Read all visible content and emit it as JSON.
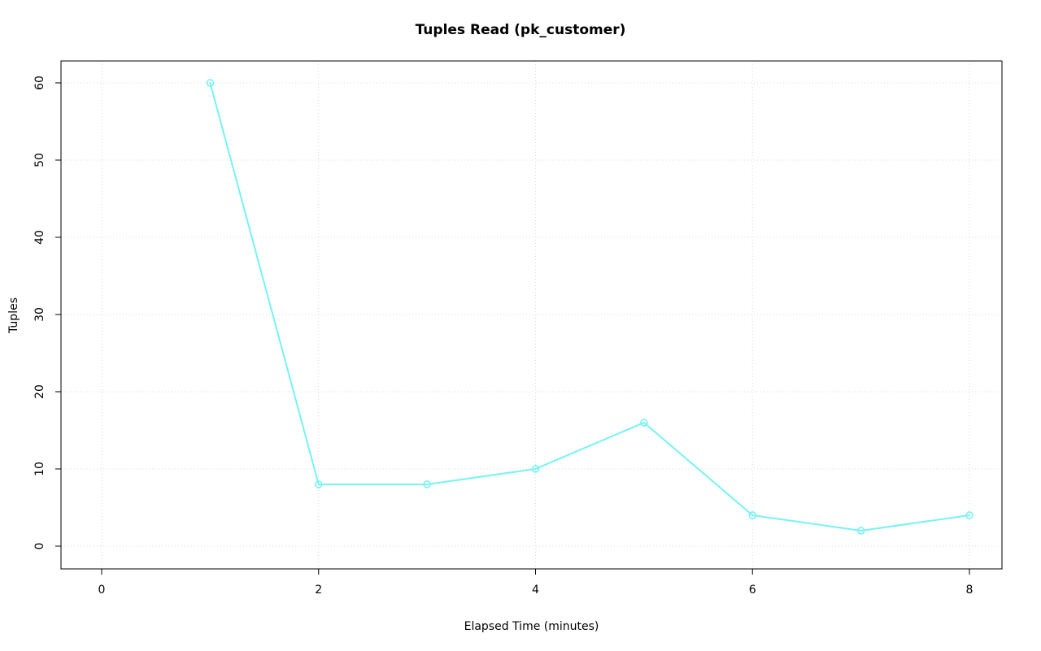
{
  "chart_data": {
    "type": "line",
    "title": "Tuples Read (pk_customer)",
    "xlabel": "Elapsed Time (minutes)",
    "ylabel": "Tuples",
    "x": [
      1,
      2,
      3,
      4,
      5,
      6,
      7,
      8
    ],
    "values": [
      60,
      8,
      8,
      10,
      16,
      4,
      2,
      4
    ],
    "xticks": [
      0,
      2,
      4,
      6,
      8
    ],
    "yticks": [
      0,
      10,
      20,
      30,
      40,
      50,
      60
    ],
    "xlim": [
      -0.375,
      8.3
    ],
    "ylim": [
      -2.95,
      62.84
    ],
    "grid": true,
    "legend": "none",
    "line_color": "#76F3F3",
    "grid_color": "#d9d9d9",
    "marker": "open-circle",
    "background_color": "#ffffff",
    "axis_color": "#000000"
  }
}
